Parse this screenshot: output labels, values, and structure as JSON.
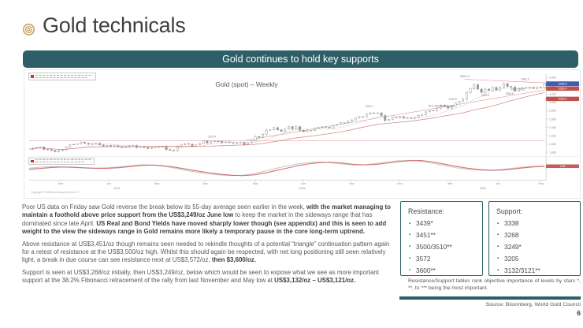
{
  "slide": {
    "title": "Gold technicals",
    "banner": "Gold continues to hold key supports",
    "source": "Source: Bloomberg, World Gold Council",
    "page_number": "6"
  },
  "analysis": {
    "paragraphs": [
      {
        "segments": [
          {
            "t": "Poor US data on Friday saw Gold reverse the break below its 55-day average seen earlier in the week, ",
            "b": false
          },
          {
            "t": "with the market managing to maintain a foothold above price support from the US$3,249/oz June low",
            "b": true
          },
          {
            "t": " to keep the market in the sideways range that has dominated since late April. ",
            "b": false
          },
          {
            "t": "US Real and Bond Yields have moved sharply lower though (see appendix) and this is seen to add weight to the view the sideways range in Gold remains more likely a temporary pause in the core long-term uptrend.",
            "b": true
          }
        ]
      },
      {
        "segments": [
          {
            "t": "Above resistance at US$3,451/oz though remains seen needed to rekindle thoughts of a potential “triangle” continuation pattern again for a retest of resistance at the US$3,500/oz high. Whilst this should again be respected, with net long positioning still seen relatively light, a break in due course can see resistance next at US$3,572/oz, ",
            "b": false
          },
          {
            "t": "then $3,600/oz.",
            "b": true
          }
        ]
      },
      {
        "segments": [
          {
            "t": "Support is seen at US$3,268/oz initially, then US$3,249/oz, below which would be seen to expose what we see as more important support at the 38.2% Fibonacci retracement of the rally from last November and May low at ",
            "b": false
          },
          {
            "t": "US$3,132/oz – US$3,121/oz.",
            "b": true
          }
        ]
      }
    ]
  },
  "levels": {
    "resistance": {
      "title": "Resistance:",
      "items": [
        "3439*",
        "3451**",
        "3500/3510**",
        "3572",
        "3600**"
      ]
    },
    "support": {
      "title": "Support:",
      "items": [
        "3338",
        "3268",
        "3249*",
        "3205",
        "3132/3121**"
      ]
    },
    "footnote": "Resistance/Support tables rank objective importance of levels by stars *, **, to *** being the most important."
  },
  "chart_data": {
    "type": "candlestick",
    "title": "Gold (spot) – Weekly",
    "ylabel": "US$/oz",
    "y_axis": {
      "min": 1750,
      "max": 3700,
      "ticks": [
        1800,
        2000,
        2200,
        2400,
        2600,
        2800,
        3000,
        3200,
        3400,
        3600
      ]
    },
    "x_axis": {
      "months": [
        "Mar",
        "Jun",
        "Sep",
        "Dec",
        "Mar",
        "Jun",
        "Sep",
        "Dec",
        "Mar",
        "Jun",
        "Sep"
      ],
      "month_fractions": [
        0.061,
        0.155,
        0.248,
        0.342,
        0.439,
        0.532,
        0.626,
        0.719,
        0.817,
        0.91,
        0.993
      ],
      "years": [
        {
          "t": "2023",
          "x": 0.17
        },
        {
          "t": "2024",
          "x": 0.53
        },
        {
          "t": "2025",
          "x": 0.88
        }
      ]
    },
    "weekly_close": [
      1872,
      1898,
      1912,
      1926,
      1868,
      1862,
      1840,
      1811,
      1838,
      1856,
      1920,
      1978,
      1989,
      2002,
      2040,
      2015,
      1990,
      2011,
      2020,
      1977,
      1948,
      1962,
      1942,
      1958,
      1930,
      1914,
      1921,
      1959,
      1962,
      1914,
      1943,
      1915,
      1889,
      1918,
      1924,
      1926,
      1945,
      1865,
      1848,
      1833,
      1932,
      1982,
      2006,
      1992,
      1938,
      1978,
      2012,
      2072,
      2020,
      2054,
      2066,
      2062,
      2030,
      2049,
      2029,
      2018,
      2024,
      2038,
      1984,
      2024,
      2083,
      2178,
      2156,
      2233,
      2330,
      2344,
      2392,
      2338,
      2302,
      2360,
      2414,
      2360,
      2415,
      2327,
      2294,
      2320,
      2322,
      2371,
      2398,
      2411,
      2400,
      2387,
      2443,
      2470,
      2507,
      2512,
      2546,
      2578,
      2622,
      2658,
      2654,
      2720,
      2747,
      2734,
      2748,
      2684,
      2563,
      2589,
      2636,
      2633,
      2650,
      2620,
      2624,
      2615,
      2635,
      2689,
      2703,
      2771,
      2798,
      2802,
      2861,
      2936,
      2909,
      2858,
      2910,
      2984,
      3022,
      3085,
      3237,
      3327,
      3425,
      3320,
      3240,
      3320,
      3289,
      3360,
      3293,
      3366,
      3452,
      3385,
      3368,
      3274,
      3337,
      3355,
      3338,
      3363,
      3335,
      3363,
      3348,
      3448
    ],
    "moving_average_periods": [
      10,
      30
    ],
    "ma_colors": [
      "#c4c4c4",
      "#d46a6a"
    ],
    "trendlines": [
      {
        "x1": 0.0,
        "p1": 2075,
        "x2": 1.0,
        "p2": 2075,
        "color": "#f0b6bb",
        "width": 0.8
      },
      {
        "x1": 0.845,
        "p1": 3555,
        "x2": 1.0,
        "p2": 3470,
        "color": "#db9298",
        "width": 0.6
      },
      {
        "x1": 0.42,
        "p1": 2085,
        "x2": 1.0,
        "p2": 3300,
        "color": "#db9298",
        "width": 0.6
      }
    ],
    "annotations": [
      {
        "t": "2075.4",
        "x": 0.355,
        "p": 2150
      },
      {
        "t": "2790.1",
        "x": 0.66,
        "p": 2880
      },
      {
        "t": "3500.10",
        "x": 0.845,
        "p": 3600
      },
      {
        "t": "3451.3",
        "x": 0.962,
        "p": 3540
      },
      {
        "t": "3249.9",
        "x": 0.885,
        "p": 3150
      },
      {
        "t": "3268.6",
        "x": 0.932,
        "p": 3185
      },
      {
        "t": "3120.8",
        "x": 0.822,
        "p": 3055
      },
      {
        "t": "3572 / 3600",
        "x": 0.948,
        "p": 3290
      },
      {
        "t": "55 & 200-wk mov avgs",
        "x": 0.8,
        "p": 2895
      }
    ],
    "last_price_tag": {
      "value": "3448.5",
      "price": 3448,
      "color": "#3f5fae"
    },
    "ma_tags": [
      {
        "value": "3330.4",
        "price": 3330,
        "color": "#c0504d"
      },
      {
        "value": "3085.2",
        "price": 3085,
        "color": "#c0504d"
      }
    ],
    "lower_panel": {
      "range": [
        -0.55,
        0.65
      ],
      "series": [
        {
          "name": "slow",
          "color": "#bfbfbf",
          "values": [
            0.05,
            0.12,
            0.16,
            0.14,
            0.1,
            0.06,
            0.05,
            0.08,
            0.14,
            0.22,
            0.28,
            0.26,
            0.18,
            0.06,
            -0.08,
            -0.2,
            -0.3,
            -0.38,
            -0.42,
            -0.4,
            -0.3,
            -0.14,
            0.04,
            0.2,
            0.33,
            0.42,
            0.45,
            0.4,
            0.32,
            0.26,
            0.28,
            0.36,
            0.46,
            0.54,
            0.56,
            0.5,
            0.38,
            0.24,
            0.1,
            0.0,
            -0.06,
            -0.08,
            -0.04,
            0.04,
            0.12,
            0.18,
            0.2
          ]
        },
        {
          "name": "fast",
          "color": "#d05858",
          "values": [
            -0.02,
            0.04,
            0.1,
            0.13,
            0.12,
            0.08,
            0.05,
            0.05,
            0.09,
            0.16,
            0.23,
            0.26,
            0.22,
            0.12,
            0.0,
            -0.12,
            -0.23,
            -0.32,
            -0.39,
            -0.42,
            -0.38,
            -0.26,
            -0.1,
            0.06,
            0.22,
            0.34,
            0.42,
            0.44,
            0.38,
            0.3,
            0.27,
            0.3,
            0.39,
            0.48,
            0.54,
            0.55,
            0.46,
            0.33,
            0.19,
            0.07,
            -0.02,
            -0.07,
            -0.07,
            -0.01,
            0.07,
            0.14,
            0.18
          ]
        }
      ],
      "tags": [
        {
          "value": "0.20",
          "value_num": 0.2,
          "color": "#b5b5b5"
        },
        {
          "value": "0.18",
          "value_num": 0.18,
          "color": "#cf5a5a"
        }
      ]
    },
    "watermark": "Copyright© 2025 Bloomberg Finance L.P."
  },
  "colors": {
    "accent_teal": "#2e5f66",
    "gold": "#c9a35e",
    "body_text": "#595959",
    "up_candle": "#ffffff",
    "down_candle": "#9a9a9a"
  }
}
